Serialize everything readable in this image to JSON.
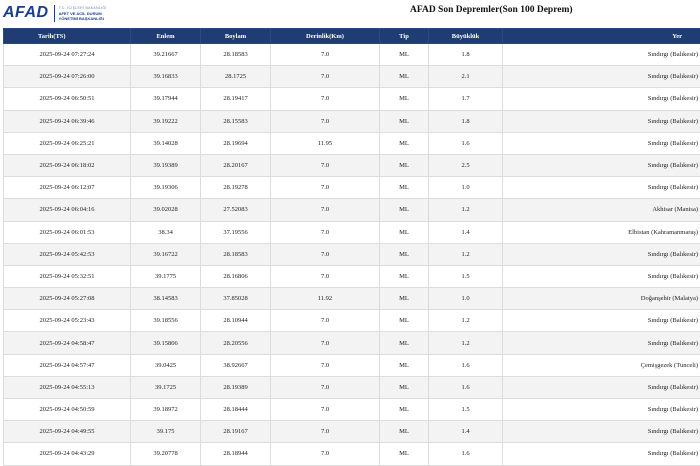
{
  "header": {
    "logo_text": "AFAD",
    "logo_sub1": "T.C. İÇİŞLERİ BAKANLIĞI",
    "logo_sub2": "AFET VE ACİL DURUM",
    "logo_sub3": "YÖNETİMİ BAŞKANLIĞI",
    "title": "AFAD Son Depremler(Son 100 Deprem)"
  },
  "table": {
    "columns": [
      "Tarih(TS)",
      "Enlem",
      "Boylam",
      "Derinlik(Km)",
      "Tip",
      "Büyüklük",
      "Yer"
    ],
    "rows": [
      [
        "2025-09-24 07:27:24",
        "39.21667",
        "28.18583",
        "7.0",
        "ML",
        "1.8",
        "Sındırgı (Balıkesir)"
      ],
      [
        "2025-09-24 07:26:00",
        "39.16833",
        "28.1725",
        "7.0",
        "ML",
        "2.1",
        "Sındırgı (Balıkesir)"
      ],
      [
        "2025-09-24 06:50:51",
        "39.17944",
        "28.19417",
        "7.0",
        "ML",
        "1.7",
        "Sındırgı (Balıkesir)"
      ],
      [
        "2025-09-24 06:39:46",
        "39.19222",
        "28.15583",
        "7.0",
        "ML",
        "1.8",
        "Sındırgı (Balıkesir)"
      ],
      [
        "2025-09-24 06:25:21",
        "39.14028",
        "28.19694",
        "11.95",
        "ML",
        "1.6",
        "Sındırgı (Balıkesir)"
      ],
      [
        "2025-09-24 06:18:02",
        "39.19389",
        "28.20167",
        "7.0",
        "ML",
        "2.5",
        "Sındırgı (Balıkesir)"
      ],
      [
        "2025-09-24 06:12:07",
        "39.19306",
        "28.19278",
        "7.0",
        "ML",
        "1.0",
        "Sındırgı (Balıkesir)"
      ],
      [
        "2025-09-24 06:04:16",
        "39.02028",
        "27.52083",
        "7.0",
        "ML",
        "1.2",
        "Akhisar (Manisa)"
      ],
      [
        "2025-09-24 06:01:53",
        "38.34",
        "37.19556",
        "7.0",
        "ML",
        "1.4",
        "Elbistan (Kahramanmaraş)"
      ],
      [
        "2025-09-24 05:42:53",
        "39.16722",
        "28.18583",
        "7.0",
        "ML",
        "1.2",
        "Sındırgı (Balıkesir)"
      ],
      [
        "2025-09-24 05:32:51",
        "39.1775",
        "28.16806",
        "7.0",
        "ML",
        "1.5",
        "Sındırgı (Balıkesir)"
      ],
      [
        "2025-09-24 05:27:08",
        "38.14583",
        "37.85028",
        "11.92",
        "ML",
        "1.0",
        "Doğanşehir (Malatya)"
      ],
      [
        "2025-09-24 05:23:43",
        "39.18556",
        "28.10944",
        "7.0",
        "ML",
        "1.2",
        "Sındırgı (Balıkesir)"
      ],
      [
        "2025-09-24 04:58:47",
        "39.15806",
        "28.20556",
        "7.0",
        "ML",
        "1.2",
        "Sındırgı (Balıkesir)"
      ],
      [
        "2025-09-24 04:57:47",
        "39.0425",
        "38.92667",
        "7.0",
        "ML",
        "1.6",
        "Çemişgezek (Tunceli)"
      ],
      [
        "2025-09-24 04:55:13",
        "39.1725",
        "28.19389",
        "7.0",
        "ML",
        "1.6",
        "Sındırgı (Balıkesir)"
      ],
      [
        "2025-09-24 04:50:59",
        "39.18972",
        "28.18444",
        "7.0",
        "ML",
        "1.5",
        "Sındırgı (Balıkesir)"
      ],
      [
        "2025-09-24 04:49:55",
        "39.175",
        "28.19167",
        "7.0",
        "ML",
        "1.4",
        "Sındırgı (Balıkesir)"
      ],
      [
        "2025-09-24 04:43:29",
        "39.20778",
        "28.18944",
        "7.0",
        "ML",
        "1.6",
        "Sındırgı (Balıkesir)"
      ]
    ]
  },
  "colors": {
    "header_bg": "#1f3c73",
    "logo": "#1a3e8c",
    "row_alt": "#f3f3f3"
  }
}
